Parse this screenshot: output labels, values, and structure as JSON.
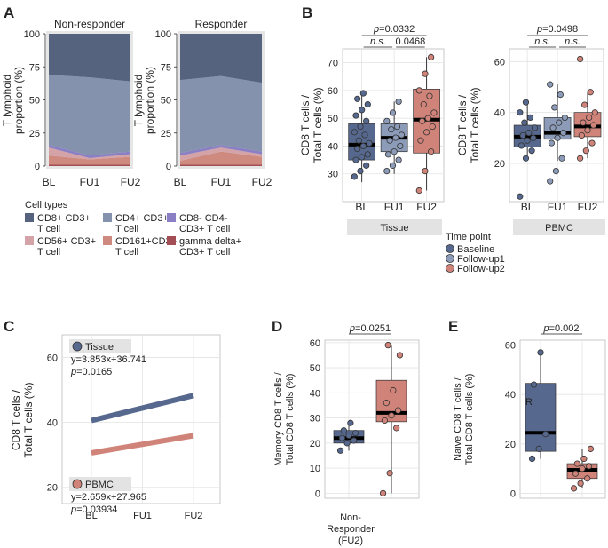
{
  "panels": {
    "A": "A",
    "B": "B",
    "C": "C",
    "D": "D",
    "E": "E"
  },
  "colors": {
    "cd8": "#55637F",
    "cd4": "#8592AE",
    "dn": "#8A7FC4",
    "cd56": "#D3A3A8",
    "cd161": "#CF8A80",
    "gd": "#A24E54",
    "baseline": "#56688E",
    "fu1": "#8C9BB8",
    "fu2": "#D08379",
    "grid": "#E3E3E3",
    "strip": "#E3E3E3",
    "panel_bg": "#E6E6E6"
  },
  "chart_data": [
    {
      "id": "A",
      "type": "area",
      "stacked": true,
      "percent": true,
      "ylabel": "T lymphoid proportion (%)",
      "ylim": [
        0,
        100
      ],
      "yticks": [
        0,
        25,
        50,
        75,
        100
      ],
      "categories": [
        "BL",
        "FU1",
        "FU2"
      ],
      "facets": [
        {
          "title": "Non-responder",
          "series": [
            {
              "key": "gd",
              "name": "gamma delta+ CD3+ T cell",
              "values": [
                1,
                1,
                1
              ]
            },
            {
              "key": "cd161",
              "name": "CD161+CD3+ T cell",
              "values": [
                7,
                4,
                6
              ]
            },
            {
              "key": "cd56",
              "name": "CD56+ CD3+ T cell",
              "values": [
                6,
                1,
                2
              ]
            },
            {
              "key": "dn",
              "name": "CD8- CD4- CD3+ T cell",
              "values": [
                2,
                2,
                2
              ]
            },
            {
              "key": "cd4",
              "name": "CD4+ CD3+ T cell",
              "values": [
                53,
                59,
                53
              ]
            },
            {
              "key": "cd8",
              "name": "CD8+ CD3+ T cell",
              "values": [
                31,
                33,
                36
              ]
            }
          ]
        },
        {
          "title": "Responder",
          "series": [
            {
              "key": "gd",
              "name": "gamma delta+ CD3+ T cell",
              "values": [
                1,
                1,
                1
              ]
            },
            {
              "key": "cd161",
              "name": "CD161+CD3+ T cell",
              "values": [
                3,
                10,
                6
              ]
            },
            {
              "key": "cd56",
              "name": "CD56+ CD3+ T cell",
              "values": [
                4,
                3,
                2
              ]
            },
            {
              "key": "dn",
              "name": "CD8- CD4- CD3+ T cell",
              "values": [
                2,
                2,
                2
              ]
            },
            {
              "key": "cd4",
              "name": "CD4+ CD3+ T cell",
              "values": [
                55,
                52,
                52
              ]
            },
            {
              "key": "cd8",
              "name": "CD8+ CD3+ T cell",
              "values": [
                35,
                32,
                37
              ]
            }
          ]
        }
      ],
      "legend": {
        "title": "Cell types",
        "position": "bottom",
        "items": [
          {
            "key": "cd8",
            "lines": [
              "CD8+ CD3+",
              "T cell"
            ]
          },
          {
            "key": "cd4",
            "lines": [
              "CD4+ CD3+",
              "T cell"
            ]
          },
          {
            "key": "dn",
            "lines": [
              "CD8- CD4-",
              "CD3+ T cell"
            ]
          },
          {
            "key": "cd56",
            "lines": [
              "CD56+ CD3+",
              "T cell"
            ]
          },
          {
            "key": "cd161",
            "lines": [
              "CD161+CD3+",
              "T cell"
            ]
          },
          {
            "key": "gd",
            "lines": [
              "gamma delta+",
              "CD3+ T cell"
            ]
          }
        ]
      }
    },
    {
      "id": "B",
      "type": "box",
      "ylabel": "CD8 T cells / Total T cells (%)",
      "categories": [
        "BL",
        "FU1",
        "FU2"
      ],
      "legend": {
        "title": "Time point",
        "position": "bottom",
        "items": [
          {
            "key": "baseline",
            "label": "Baseline"
          },
          {
            "key": "fu1",
            "label": "Follow-up1"
          },
          {
            "key": "fu2",
            "label": "Follow-up2"
          }
        ]
      },
      "facets": [
        {
          "strip": "Tissue",
          "ylim": [
            20,
            75
          ],
          "yticks": [
            30,
            40,
            50,
            60,
            70
          ],
          "boxes": [
            {
              "category": "BL",
              "key": "baseline",
              "q1": 35,
              "median": 40.5,
              "q3": 48,
              "min": 27,
              "max": 59
            },
            {
              "category": "FU1",
              "key": "fu1",
              "q1": 38,
              "median": 43,
              "q3": 48,
              "min": 30,
              "max": 56
            },
            {
              "category": "FU2",
              "key": "fu2",
              "q1": 37.5,
              "median": 49.5,
              "q3": 60.5,
              "min": 24,
              "max": 72
            }
          ],
          "points": [
            [
              29,
              31,
              33,
              35,
              36,
              37,
              39,
              40,
              41,
              42,
              44,
              45,
              47,
              49,
              51,
              53,
              55,
              57,
              59
            ],
            [
              31,
              33,
              35,
              37,
              38,
              40,
              42,
              43,
              44,
              46,
              47,
              49,
              52,
              56
            ],
            [
              24,
              31,
              38,
              42,
              45,
              47,
              49,
              50,
              52,
              55,
              58,
              60,
              66,
              72
            ]
          ],
          "brackets": [
            {
              "from": "BL",
              "to": "FU2",
              "label": "p=0.0332",
              "p": "0.0332"
            },
            {
              "from": "BL",
              "to": "FU1",
              "label": "n.s."
            },
            {
              "from": "FU1",
              "to": "FU2",
              "label": "0.0468"
            }
          ]
        },
        {
          "strip": "PBMC",
          "ylim": [
            5,
            65
          ],
          "yticks": [
            20,
            40,
            60
          ],
          "boxes": [
            {
              "category": "BL",
              "key": "baseline",
              "q1": 26.5,
              "median": 30.5,
              "q3": 35,
              "min": 22,
              "max": 44
            },
            {
              "category": "FU1",
              "key": "fu1",
              "q1": 29.5,
              "median": 32,
              "q3": 38,
              "min": 21,
              "max": 51
            },
            {
              "category": "FU2",
              "key": "fu2",
              "q1": 30.5,
              "median": 34.5,
              "q3": 40,
              "min": 22,
              "max": 48
            }
          ],
          "points": [
            [
              7,
              22,
              25,
              27,
              29,
              30,
              31,
              32,
              34,
              36,
              38,
              40,
              44
            ],
            [
              13,
              17,
              22,
              28,
              30,
              32,
              34,
              36,
              38,
              42,
              47,
              51
            ],
            [
              22,
              25,
              28,
              31,
              33,
              35,
              36,
              38,
              40,
              43,
              48,
              61
            ]
          ],
          "brackets": [
            {
              "from": "BL",
              "to": "FU2",
              "label": "p=0.0498",
              "p": "0.0498"
            },
            {
              "from": "BL",
              "to": "FU1",
              "label": "n.s."
            },
            {
              "from": "FU1",
              "to": "FU2",
              "label": "n.s."
            }
          ]
        }
      ]
    },
    {
      "id": "C",
      "type": "line",
      "ylabel": "CD8 T cells / Total T cells (%)",
      "categories": [
        "BL",
        "FU1",
        "FU2"
      ],
      "ylim": [
        15,
        67
      ],
      "yticks": [
        20,
        40,
        60
      ],
      "series": [
        {
          "name": "Tissue",
          "key": "baseline",
          "eq": "y=3.853x+36.741",
          "p": "p=0.0165",
          "slope": 3.853,
          "intercept": 36.741
        },
        {
          "name": "PBMC",
          "key": "fu2",
          "eq": "y=2.659x+27.965",
          "p": "p=0.03934",
          "slope": 2.659,
          "intercept": 27.965
        }
      ]
    },
    {
      "id": "D",
      "type": "box",
      "ylabel": "Memory CD8 T cells / Total CD8 T cells (%)",
      "ylim": [
        -2,
        61
      ],
      "yticks": [
        0,
        10,
        20,
        30,
        40,
        50,
        60
      ],
      "xlabel_lines": [
        "Non-",
        "Responder",
        "(FU2)"
      ],
      "boxes": [
        {
          "key": "baseline",
          "q1": 20,
          "median": 22,
          "q3": 25,
          "min": 17,
          "max": 28
        },
        {
          "key": "fu2",
          "q1": 28.5,
          "median": 32,
          "q3": 45,
          "min": 0,
          "max": 59
        }
      ],
      "points": [
        [
          17,
          20,
          21,
          22,
          23,
          24,
          25,
          28
        ],
        [
          0,
          8,
          26,
          29,
          31,
          33,
          36,
          41,
          55,
          59
        ]
      ],
      "bracket": {
        "label": "p=0.0251",
        "p": "0.0251"
      }
    },
    {
      "id": "E",
      "type": "box",
      "ylabel": "Naive CD8 T cells / Total CD8 T cells (%)",
      "ylim": [
        -2,
        62
      ],
      "yticks": [
        0,
        20,
        40,
        60
      ],
      "annotation": "R",
      "boxes": [
        {
          "key": "baseline",
          "q1": 17,
          "median": 24.5,
          "q3": 44.5,
          "min": 14,
          "max": 57
        },
        {
          "key": "fu2",
          "q1": 6,
          "median": 9.5,
          "q3": 12,
          "min": 2,
          "max": 18
        }
      ],
      "points": [
        [
          14,
          18,
          24,
          44,
          57
        ],
        [
          2,
          4,
          6,
          8,
          10,
          11,
          12,
          14,
          18
        ]
      ],
      "bracket": {
        "label": "p=0.002",
        "p": "0.002"
      }
    }
  ]
}
